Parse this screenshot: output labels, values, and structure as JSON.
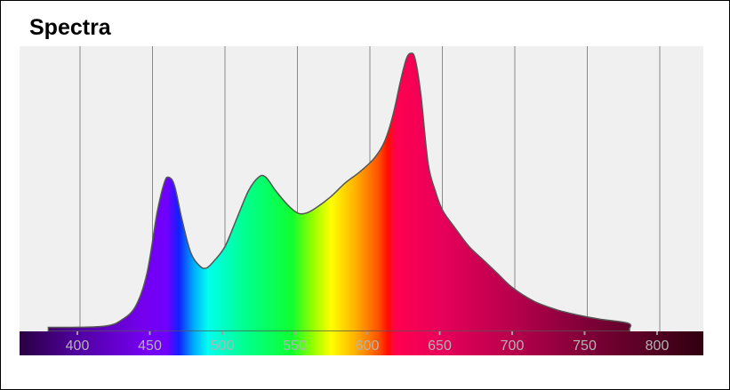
{
  "chart_data": {
    "type": "area",
    "title": "Spectra",
    "xlabel": "",
    "ylabel": "",
    "xlim": [
      357,
      832
    ],
    "ylim": [
      0,
      1.05
    ],
    "grid": "vertical",
    "x_ticks": [
      400,
      450,
      500,
      550,
      600,
      650,
      700,
      750,
      800
    ],
    "x_tick_labels": [
      "400",
      "450",
      "500",
      "550",
      "600",
      "650",
      "700",
      "750",
      "800"
    ],
    "fill": "visible-spectrum gradient",
    "series": [
      {
        "x": [
          380,
          400,
          420,
          430,
          440,
          448,
          455,
          460,
          463,
          467,
          472,
          478,
          484,
          489,
          495,
          502,
          510,
          518,
          525,
          530,
          537,
          545,
          552,
          558,
          565,
          575,
          585,
          595,
          605,
          612,
          618,
          623,
          627,
          630,
          633,
          637,
          642,
          647,
          652,
          660,
          670,
          680,
          690,
          700,
          715,
          730,
          745,
          760,
          780,
          781
        ],
        "y": [
          0.005,
          0.005,
          0.01,
          0.03,
          0.08,
          0.2,
          0.42,
          0.53,
          0.55,
          0.52,
          0.4,
          0.28,
          0.23,
          0.22,
          0.25,
          0.3,
          0.4,
          0.5,
          0.55,
          0.55,
          0.5,
          0.45,
          0.42,
          0.42,
          0.44,
          0.48,
          0.53,
          0.57,
          0.62,
          0.68,
          0.78,
          0.9,
          0.98,
          1.0,
          0.98,
          0.85,
          0.6,
          0.5,
          0.43,
          0.37,
          0.3,
          0.25,
          0.2,
          0.15,
          0.1,
          0.07,
          0.05,
          0.035,
          0.02,
          0.0
        ]
      }
    ],
    "colors": {
      "background": "#f0f0f0",
      "grid": "#8a8a8a",
      "line": "#555555",
      "tick_label": "#b4b4b4"
    }
  }
}
